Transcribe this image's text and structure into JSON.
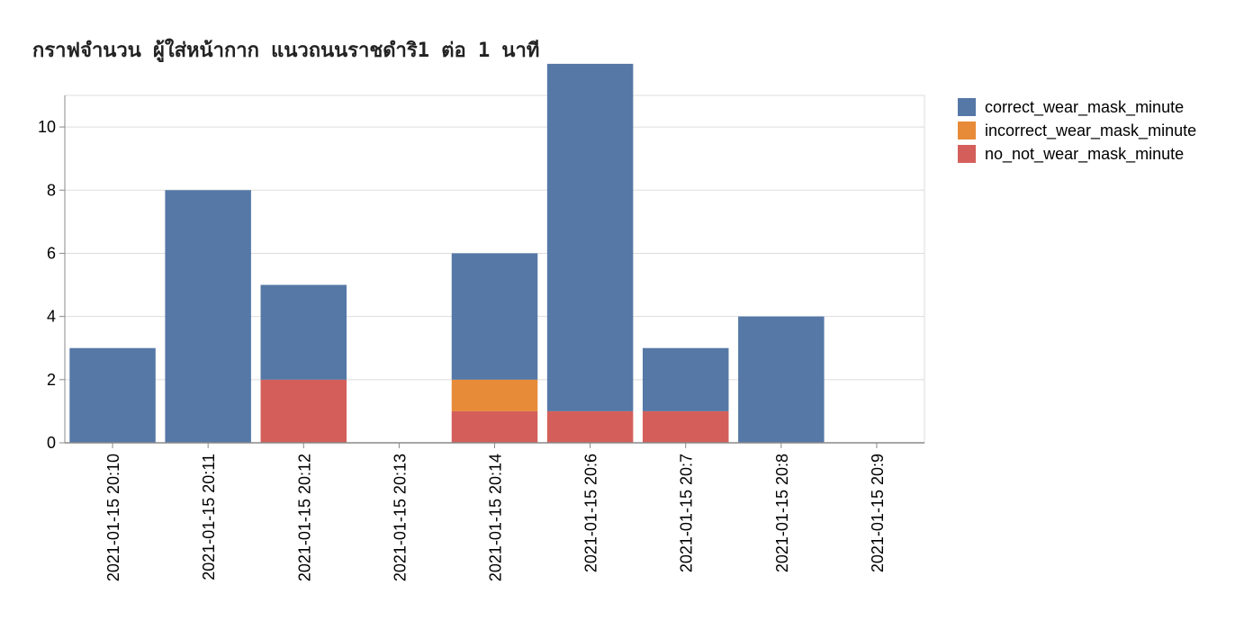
{
  "chart_data": {
    "type": "bar",
    "stacked": true,
    "title": "กราฟจำนวน ผู้ใส่หน้ากาก แนวถนนราชดำริ1 ต่อ 1 นาที",
    "xlabel": "",
    "ylabel": "",
    "categories": [
      "2021-01-15 20:10",
      "2021-01-15 20:11",
      "2021-01-15 20:12",
      "2021-01-15 20:13",
      "2021-01-15 20:14",
      "2021-01-15 20:6",
      "2021-01-15 20:7",
      "2021-01-15 20:8",
      "2021-01-15 20:9"
    ],
    "series": [
      {
        "name": "no_not_wear_mask_minute",
        "color": "#d45f5a",
        "values": [
          0,
          0,
          2,
          0,
          1,
          1,
          1,
          0,
          0
        ]
      },
      {
        "name": "incorrect_wear_mask_minute",
        "color": "#e78b39",
        "values": [
          0,
          0,
          0,
          0,
          1,
          0,
          0,
          0,
          0
        ]
      },
      {
        "name": "correct_wear_mask_minute",
        "color": "#5578a6",
        "values": [
          3,
          8,
          3,
          0,
          4,
          11,
          2,
          4,
          0
        ]
      }
    ],
    "ylim": [
      0,
      11
    ],
    "yticks": [
      0,
      2,
      4,
      6,
      8,
      10
    ],
    "grid": true,
    "legend_position": "right",
    "legend": [
      {
        "label": "correct_wear_mask_minute",
        "color": "#5578a6"
      },
      {
        "label": "incorrect_wear_mask_minute",
        "color": "#e78b39"
      },
      {
        "label": "no_not_wear_mask_minute",
        "color": "#d45f5a"
      }
    ]
  }
}
